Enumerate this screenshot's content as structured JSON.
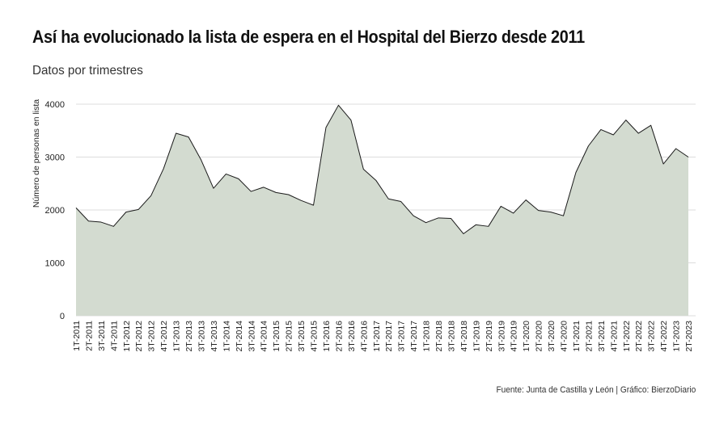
{
  "title": "Así ha evolucionado la lista de espera en el Hospital del Bierzo desde 2011",
  "subtitle": "Datos por trimestres",
  "source": "Fuente: Junta de Castilla y León | Gráfico: BierzoDiario",
  "colors": {
    "area_fill": "#d3dbd0",
    "line": "#1a1a1a",
    "grid": "#dcdcdc"
  },
  "chart_data": {
    "type": "area",
    "ylabel": "Número de personas en lista",
    "ylim": [
      0,
      4000
    ],
    "yticks": [
      0,
      1000,
      2000,
      3000,
      4000
    ],
    "grid": true,
    "x": [
      "1T-2011",
      "2T-2011",
      "3T-2011",
      "4T-2011",
      "1T-2012",
      "2T-2012",
      "3T-2012",
      "4T-2012",
      "1T-2013",
      "2T-2013",
      "3T-2013",
      "4T-2013",
      "1T-2014",
      "2T-2014",
      "3T-2014",
      "4T-2014",
      "1T-2015",
      "2T-2015",
      "3T-2015",
      "4T-2015",
      "1T-2016",
      "2T-2016",
      "3T-2016",
      "4T-2016",
      "1T-2017",
      "2T-2017",
      "3T-2017",
      "4T-2017",
      "1T-2018",
      "2T-2018",
      "3T-2018",
      "4T-2018",
      "1T-2019",
      "2T-2019",
      "3T-2019",
      "4T-2019",
      "1T-2020",
      "2T-2020",
      "3T-2020",
      "4T-2020",
      "1T-2021",
      "2T-2021",
      "3T-2021",
      "4T-2021",
      "1T-2022",
      "2T-2022",
      "3T-2022",
      "4T-2022",
      "1T-2023",
      "2T-2023"
    ],
    "values": [
      2040,
      1790,
      1770,
      1690,
      1960,
      2010,
      2270,
      2780,
      3450,
      3380,
      2950,
      2410,
      2680,
      2590,
      2350,
      2430,
      2330,
      2290,
      2180,
      2090,
      3560,
      3980,
      3700,
      2770,
      2560,
      2210,
      2160,
      1890,
      1760,
      1850,
      1840,
      1550,
      1720,
      1690,
      2070,
      1940,
      2190,
      1990,
      1960,
      1890,
      2710,
      3210,
      3520,
      3420,
      3700,
      3450,
      3600,
      2870,
      3160,
      3000
    ]
  }
}
